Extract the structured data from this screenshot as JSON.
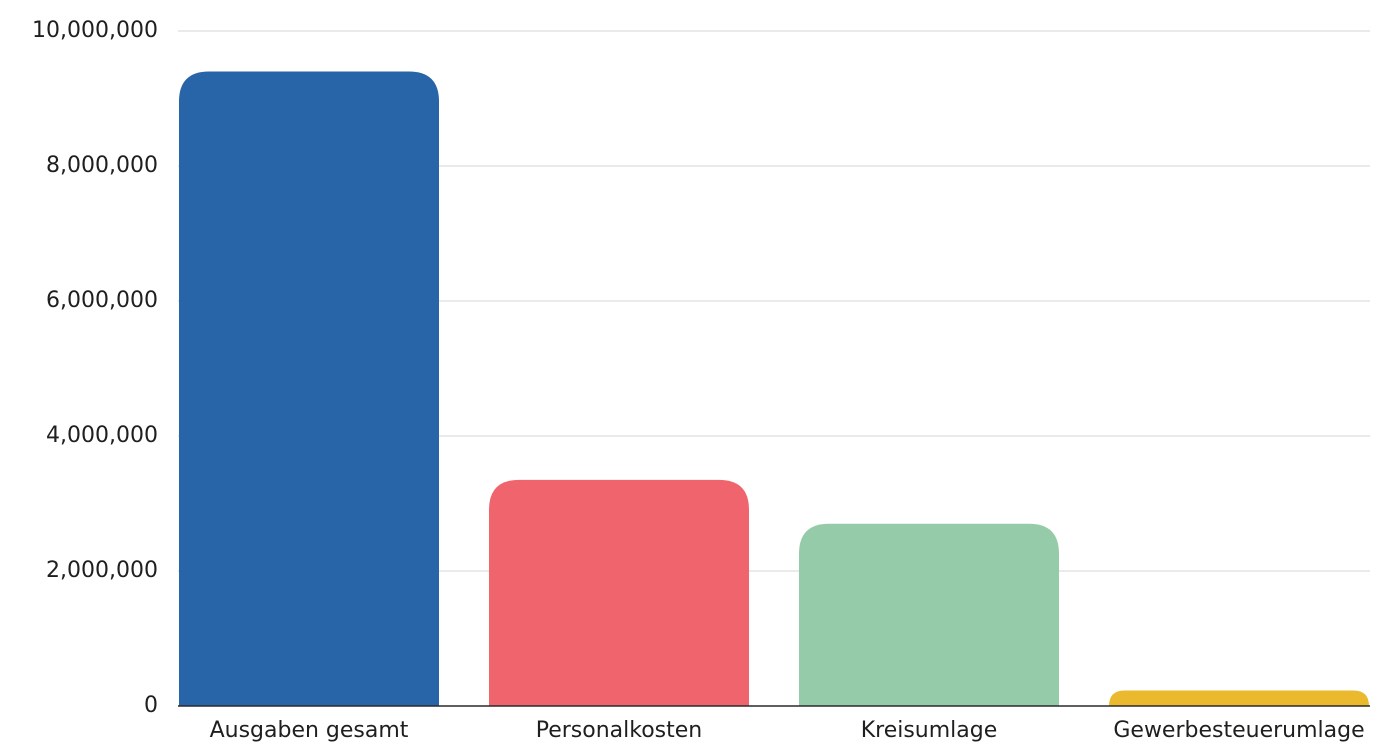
{
  "chart_data": {
    "type": "bar",
    "categories": [
      "Ausgaben gesamt",
      "Personalkosten",
      "Kreisumlage",
      "Gewerbesteuerumlage"
    ],
    "values": [
      9400000,
      3350000,
      2700000,
      230000
    ],
    "colors": [
      "#2864a8",
      "#f0646e",
      "#96cbaa",
      "#ebb92d"
    ],
    "ylim": [
      0,
      10000000
    ],
    "yticks": [
      0,
      2000000,
      4000000,
      6000000,
      8000000,
      10000000
    ],
    "ytick_labels": [
      "0",
      "2,000,000",
      "4,000,000",
      "6,000,000",
      "8,000,000",
      "10,000,000"
    ],
    "grid": true,
    "legend": "none"
  }
}
